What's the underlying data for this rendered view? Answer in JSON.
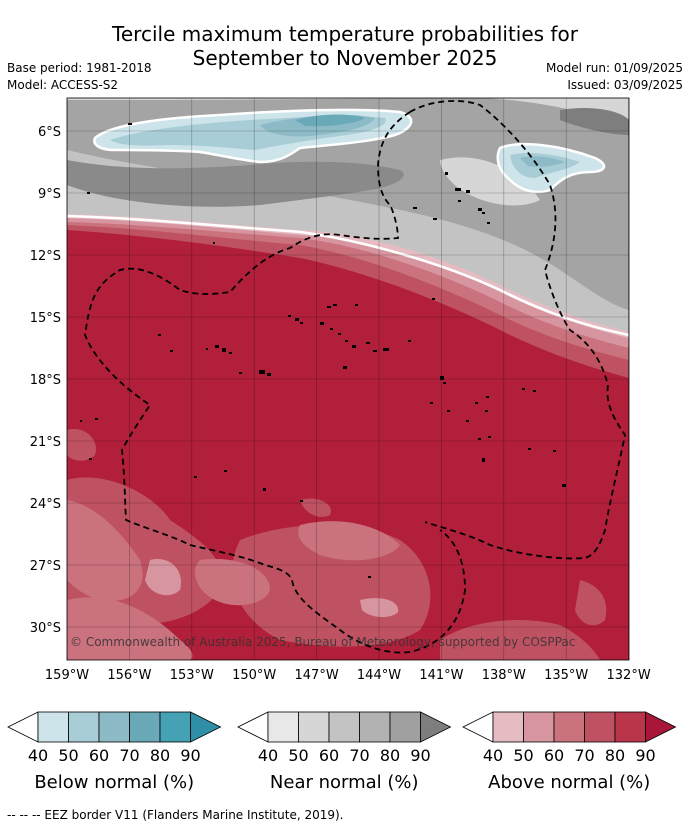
{
  "header": {
    "title_line1": "Tercile maximum temperature probabilities for",
    "title_line2": "September to November 2025",
    "base_period": "Base period: 1981-2018",
    "model": "Model: ACCESS-S2",
    "model_run": "Model run: 01/09/2025",
    "issued": "Issued: 03/09/2025"
  },
  "map": {
    "lat_labels": [
      "6°S",
      "9°S",
      "12°S",
      "15°S",
      "18°S",
      "21°S",
      "24°S",
      "27°S",
      "30°S"
    ],
    "lon_labels": [
      "159°W",
      "156°W",
      "153°W",
      "150°W",
      "147°W",
      "144°W",
      "141°W",
      "138°W",
      "135°W",
      "132°W"
    ],
    "copyright": "© Commonwealth of Australia 2025, Bureau of Meteorology, supported by COSPPac",
    "colors": {
      "above_dominant": "#b11f3a",
      "near_dominant": "#a4a4a4",
      "below_dominant": "#8cbac6"
    }
  },
  "legend": {
    "ticks": [
      "40",
      "50",
      "60",
      "70",
      "80",
      "90"
    ],
    "below": {
      "title": "Below normal (%)",
      "colors": [
        "#ffffff",
        "#cde4ea",
        "#a9cdd6",
        "#8cbac6",
        "#6aa9b8",
        "#45a1b4",
        "#2e8fa6"
      ]
    },
    "near": {
      "title": "Near normal (%)",
      "colors": [
        "#ffffff",
        "#e8e8e8",
        "#d6d6d6",
        "#c3c3c3",
        "#b2b2b2",
        "#a0a0a0",
        "#7e7e7e"
      ]
    },
    "above": {
      "title": "Above normal (%)",
      "colors": [
        "#ffffff",
        "#e6bcc3",
        "#d7959f",
        "#ca727e",
        "#bf5262",
        "#b93549",
        "#a8173a"
      ]
    }
  },
  "footnote": "--  --  -- EEZ border V11 (Flanders Marine Institute, 2019)."
}
